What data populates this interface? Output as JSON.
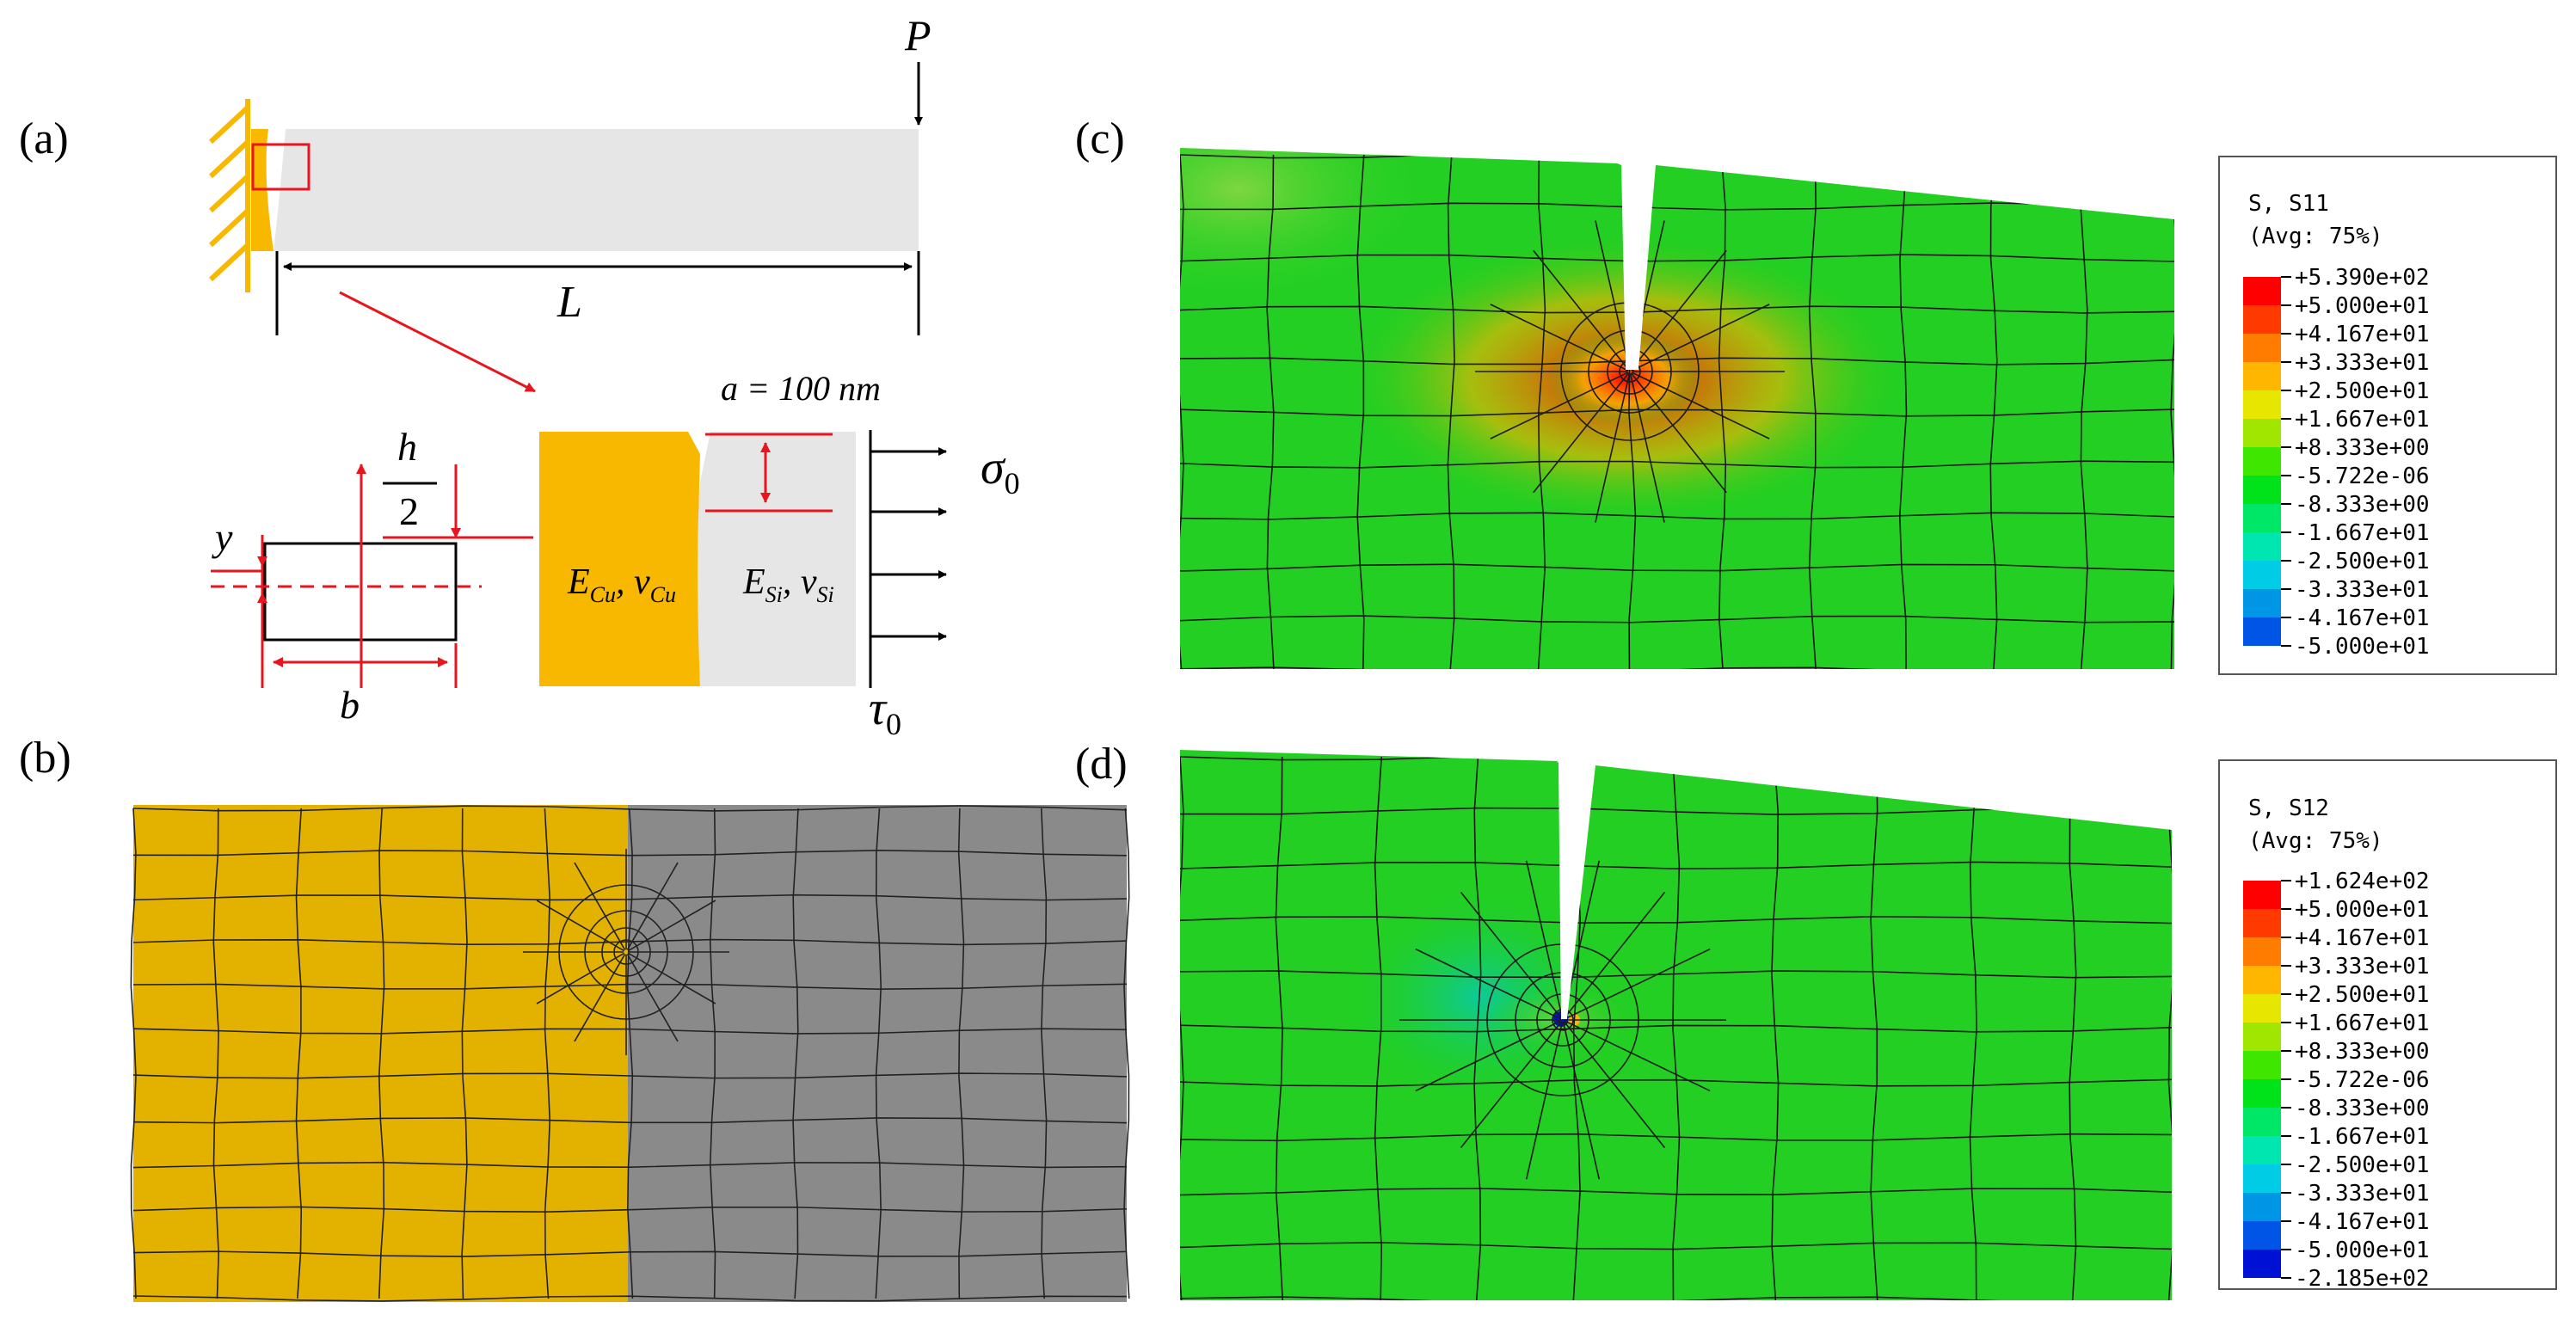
{
  "panels": {
    "a": {
      "label": "(a)"
    },
    "b": {
      "label": "(b)"
    },
    "c": {
      "label": "(c)"
    },
    "d": {
      "label": "(d)"
    }
  },
  "beam": {
    "load": "P",
    "length": "L",
    "crack": "a = 100 nm",
    "stress_normal": "σ",
    "stress_normal_sub": "0",
    "stress_shear": "τ",
    "stress_shear_sub": "0",
    "cu_E": "E",
    "cu_E_sub": "Cu",
    "cu_nu": "ν",
    "cu_nu_sub": "Cu",
    "si_E": "E",
    "si_E_sub": "Si",
    "si_nu": "ν",
    "si_nu_sub": "Si",
    "section_h": "h",
    "section_2": "2",
    "section_y": "y",
    "section_b": "b"
  },
  "colors": {
    "copper": "#F9B800",
    "copper_mesh": "#E0B000",
    "silicon": "#E6E6E6",
    "silicon_mesh": "#8A8A8A",
    "annot_red": "#E8141E",
    "contour_green": "#22CF22"
  },
  "legends": {
    "c": {
      "title_line1": "S, S11",
      "title_line2": "(Avg: 75%)",
      "values": [
        "+5.390e+02",
        "+5.000e+01",
        "+4.167e+01",
        "+3.333e+01",
        "+2.500e+01",
        "+1.667e+01",
        "+8.333e+00",
        "-5.722e-06",
        "-8.333e+00",
        "-1.667e+01",
        "-2.500e+01",
        "-3.333e+01",
        "-4.167e+01",
        "-5.000e+01"
      ]
    },
    "d": {
      "title_line1": "S, S12",
      "title_line2": "(Avg: 75%)",
      "values": [
        "+1.624e+02",
        "+5.000e+01",
        "+4.167e+01",
        "+3.333e+01",
        "+2.500e+01",
        "+1.667e+01",
        "+8.333e+00",
        "-5.722e-06",
        "-8.333e+00",
        "-1.667e+01",
        "-2.500e+01",
        "-3.333e+01",
        "-4.167e+01",
        "-5.000e+01",
        "-2.185e+02"
      ]
    }
  },
  "legend_colors": [
    "#FF0000",
    "#FF3A00",
    "#FF7C00",
    "#FFB600",
    "#E6E600",
    "#A0E600",
    "#3EE600",
    "#00E31A",
    "#00E666",
    "#00E6B0",
    "#00CCE6",
    "#0096E6",
    "#0055E6",
    "#0011D6"
  ]
}
